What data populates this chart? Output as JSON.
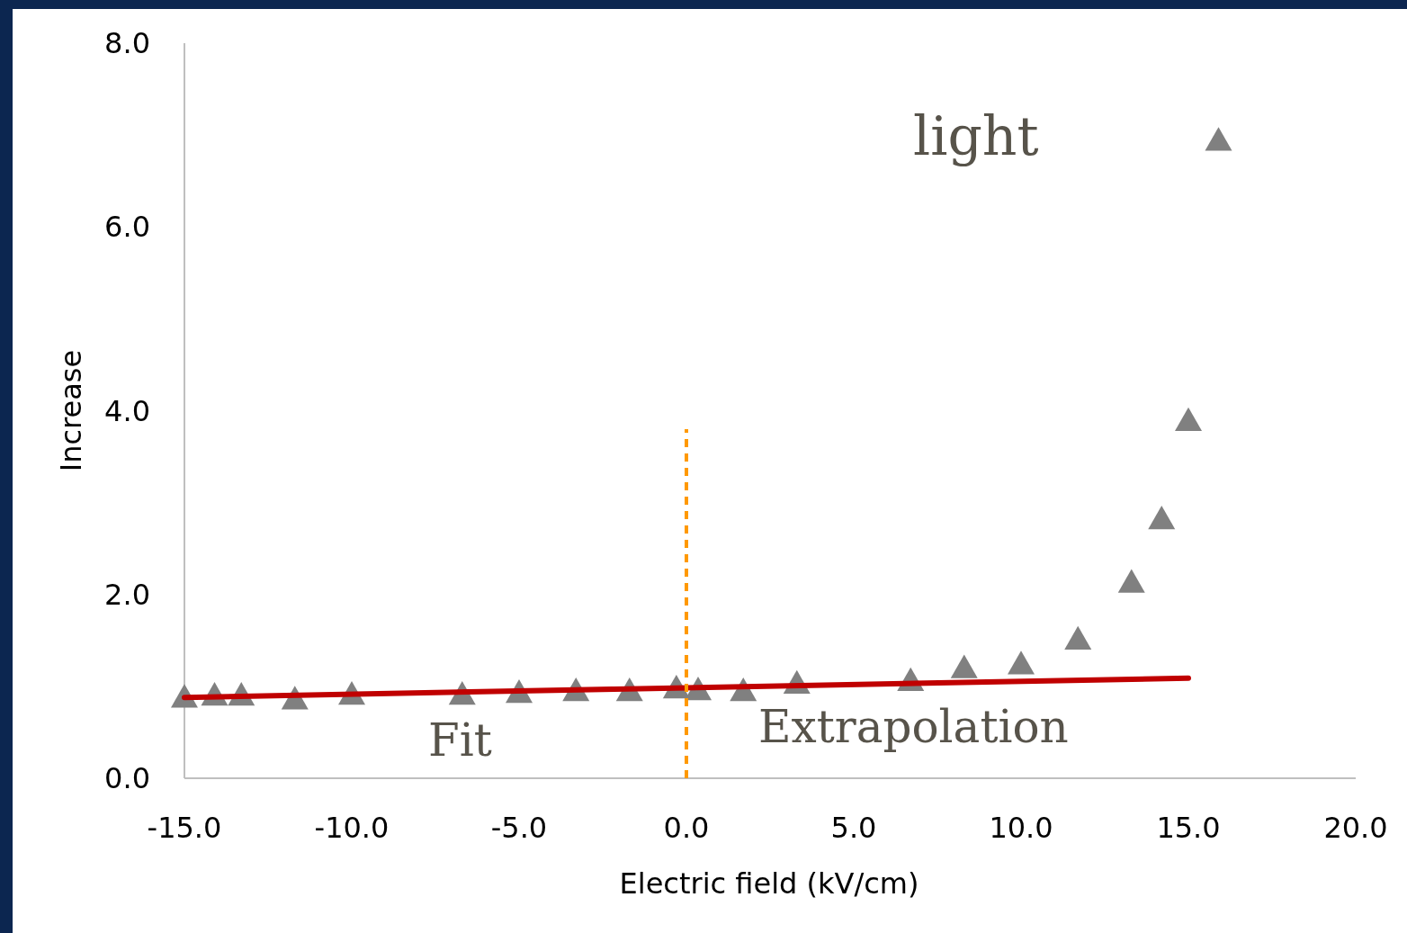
{
  "chart_data": {
    "type": "scatter",
    "xlabel": "Electric field (kV/cm)",
    "ylabel": "Increase",
    "xlim": [
      -15,
      20
    ],
    "xticks": [
      {
        "value": -15,
        "label": "-15.0"
      },
      {
        "value": -10,
        "label": "-10.0"
      },
      {
        "value": -5,
        "label": "-5.0"
      },
      {
        "value": 0,
        "label": "0.0"
      },
      {
        "value": 5,
        "label": "5.0"
      },
      {
        "value": 10,
        "label": "10.0"
      },
      {
        "value": 15,
        "label": "15.0"
      },
      {
        "value": 20,
        "label": "20.0"
      }
    ],
    "ylim": [
      0,
      8
    ],
    "yticks": [
      {
        "value": 0,
        "label": "0.0"
      },
      {
        "value": 2,
        "label": "2.0"
      },
      {
        "value": 4,
        "label": "4.0"
      },
      {
        "value": 6,
        "label": "6.0"
      },
      {
        "value": 8,
        "label": "8.0"
      }
    ],
    "series": [
      {
        "color": "#808080",
        "marker": "triangle",
        "x": [
          -15,
          -14.1,
          -13.3,
          -11.7,
          -10,
          -6.7,
          -5,
          -3.3,
          -1.7,
          -0.3,
          0.35,
          1.7,
          3.3,
          6.7,
          8.3,
          10,
          11.7,
          13.3,
          14.2,
          15,
          15.9
        ],
        "values": [
          0.88,
          0.9,
          0.9,
          0.86,
          0.91,
          0.91,
          0.93,
          0.95,
          0.95,
          0.98,
          0.96,
          0.95,
          1.03,
          1.06,
          1.2,
          1.24,
          1.51,
          2.13,
          2.82,
          3.89,
          6.94
        ]
      },
      {
        "type": "line",
        "color": "#c00000",
        "line_style": "solid",
        "marker": "none",
        "x": [
          -15,
          15
        ],
        "values": [
          0.88,
          1.09
        ]
      },
      {
        "type": "line",
        "color": "#ff9900",
        "line_style": "dashed",
        "marker": "none",
        "x": [
          0,
          0
        ],
        "values": [
          0,
          3.8
        ]
      }
    ],
    "annotations": [
      "light",
      "Fit",
      "Extrapolation"
    ]
  }
}
